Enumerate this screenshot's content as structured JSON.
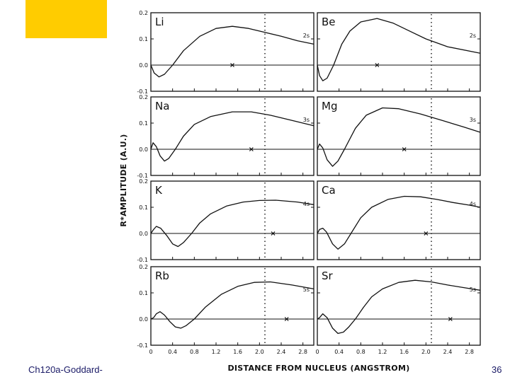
{
  "slide": {
    "footer_left": "Ch120a-Goddard-",
    "page_number": "36",
    "accent_color": "#ffcc00",
    "footer_color": "#1a1a66"
  },
  "chart_data": {
    "type": "line",
    "grid": false,
    "xlabel": "DISTANCE FROM NUCLEUS (ANGSTROM)",
    "ylabel": "R*AMPLITUDE (A.U.)",
    "xlim": [
      0,
      3.0
    ],
    "ylim": [
      -0.1,
      0.2
    ],
    "x_ticks": [
      "0",
      "0.4",
      "0.8",
      "1.2",
      "1.6",
      "2.0",
      "2.4",
      "2.8"
    ],
    "y_ticks": [
      "-0.1",
      "0.0",
      "0.1",
      "0.2"
    ],
    "reference_line_x": 2.1,
    "panels": [
      {
        "element": "Li",
        "orbital": "2s",
        "marker_x": 1.5,
        "x": [
          0,
          0.06,
          0.15,
          0.25,
          0.4,
          0.6,
          0.9,
          1.2,
          1.5,
          1.8,
          2.1,
          2.4,
          2.7,
          3.0
        ],
        "y": [
          0.0,
          -0.03,
          -0.045,
          -0.035,
          0.0,
          0.055,
          0.11,
          0.14,
          0.148,
          0.14,
          0.125,
          0.11,
          0.093,
          0.08
        ]
      },
      {
        "element": "Be",
        "orbital": "2s",
        "marker_x": 1.1,
        "x": [
          0,
          0.04,
          0.1,
          0.18,
          0.3,
          0.45,
          0.6,
          0.8,
          1.1,
          1.4,
          1.7,
          2.0,
          2.4,
          3.0
        ],
        "y": [
          0.0,
          -0.04,
          -0.06,
          -0.05,
          0.0,
          0.08,
          0.13,
          0.165,
          0.178,
          0.16,
          0.13,
          0.1,
          0.07,
          0.045
        ]
      },
      {
        "element": "Na",
        "orbital": "3s",
        "marker_x": 1.85,
        "x": [
          0,
          0.04,
          0.1,
          0.17,
          0.25,
          0.33,
          0.45,
          0.6,
          0.8,
          1.1,
          1.5,
          1.85,
          2.2,
          2.6,
          3.0
        ],
        "y": [
          0.0,
          0.025,
          0.01,
          -0.025,
          -0.045,
          -0.035,
          0.0,
          0.05,
          0.095,
          0.125,
          0.143,
          0.143,
          0.13,
          0.11,
          0.09
        ]
      },
      {
        "element": "Mg",
        "orbital": "3s",
        "marker_x": 1.6,
        "x": [
          0,
          0.04,
          0.1,
          0.18,
          0.28,
          0.38,
          0.5,
          0.7,
          0.9,
          1.2,
          1.5,
          1.9,
          2.3,
          2.7,
          3.0
        ],
        "y": [
          0.0,
          0.02,
          0.005,
          -0.04,
          -0.065,
          -0.045,
          0.0,
          0.08,
          0.13,
          0.158,
          0.155,
          0.135,
          0.11,
          0.085,
          0.065
        ]
      },
      {
        "element": "K",
        "orbital": "4s",
        "marker_x": 2.25,
        "x": [
          0,
          0.05,
          0.1,
          0.18,
          0.3,
          0.4,
          0.5,
          0.6,
          0.75,
          0.9,
          1.1,
          1.4,
          1.7,
          2.0,
          2.3,
          2.7,
          3.0
        ],
        "y": [
          0.0,
          0.015,
          0.027,
          0.02,
          -0.01,
          -0.04,
          -0.05,
          -0.035,
          0.0,
          0.04,
          0.075,
          0.105,
          0.12,
          0.126,
          0.127,
          0.12,
          0.11
        ]
      },
      {
        "element": "Ca",
        "orbital": "4s",
        "marker_x": 2.0,
        "x": [
          0,
          0.04,
          0.1,
          0.17,
          0.28,
          0.38,
          0.5,
          0.62,
          0.8,
          1.0,
          1.3,
          1.6,
          1.9,
          2.2,
          2.5,
          2.8,
          3.0
        ],
        "y": [
          0.0,
          0.015,
          0.02,
          0.005,
          -0.04,
          -0.06,
          -0.04,
          0.0,
          0.06,
          0.1,
          0.13,
          0.142,
          0.14,
          0.13,
          0.118,
          0.108,
          0.1
        ]
      },
      {
        "element": "Rb",
        "orbital": "5s",
        "marker_x": 2.5,
        "x": [
          0,
          0.05,
          0.1,
          0.17,
          0.25,
          0.35,
          0.45,
          0.55,
          0.65,
          0.8,
          1.0,
          1.3,
          1.6,
          1.9,
          2.2,
          2.6,
          3.0
        ],
        "y": [
          0.0,
          0.005,
          0.02,
          0.028,
          0.015,
          -0.01,
          -0.03,
          -0.035,
          -0.025,
          0.0,
          0.045,
          0.095,
          0.125,
          0.14,
          0.142,
          0.13,
          0.115
        ]
      },
      {
        "element": "Sr",
        "orbital": "5s",
        "marker_x": 2.45,
        "x": [
          0,
          0.04,
          0.1,
          0.18,
          0.28,
          0.38,
          0.48,
          0.58,
          0.7,
          0.85,
          1.0,
          1.2,
          1.5,
          1.8,
          2.1,
          2.4,
          2.7,
          3.0
        ],
        "y": [
          0.0,
          0.005,
          0.02,
          0.005,
          -0.035,
          -0.055,
          -0.05,
          -0.03,
          0.0,
          0.045,
          0.085,
          0.115,
          0.14,
          0.148,
          0.142,
          0.13,
          0.12,
          0.11
        ]
      }
    ]
  }
}
